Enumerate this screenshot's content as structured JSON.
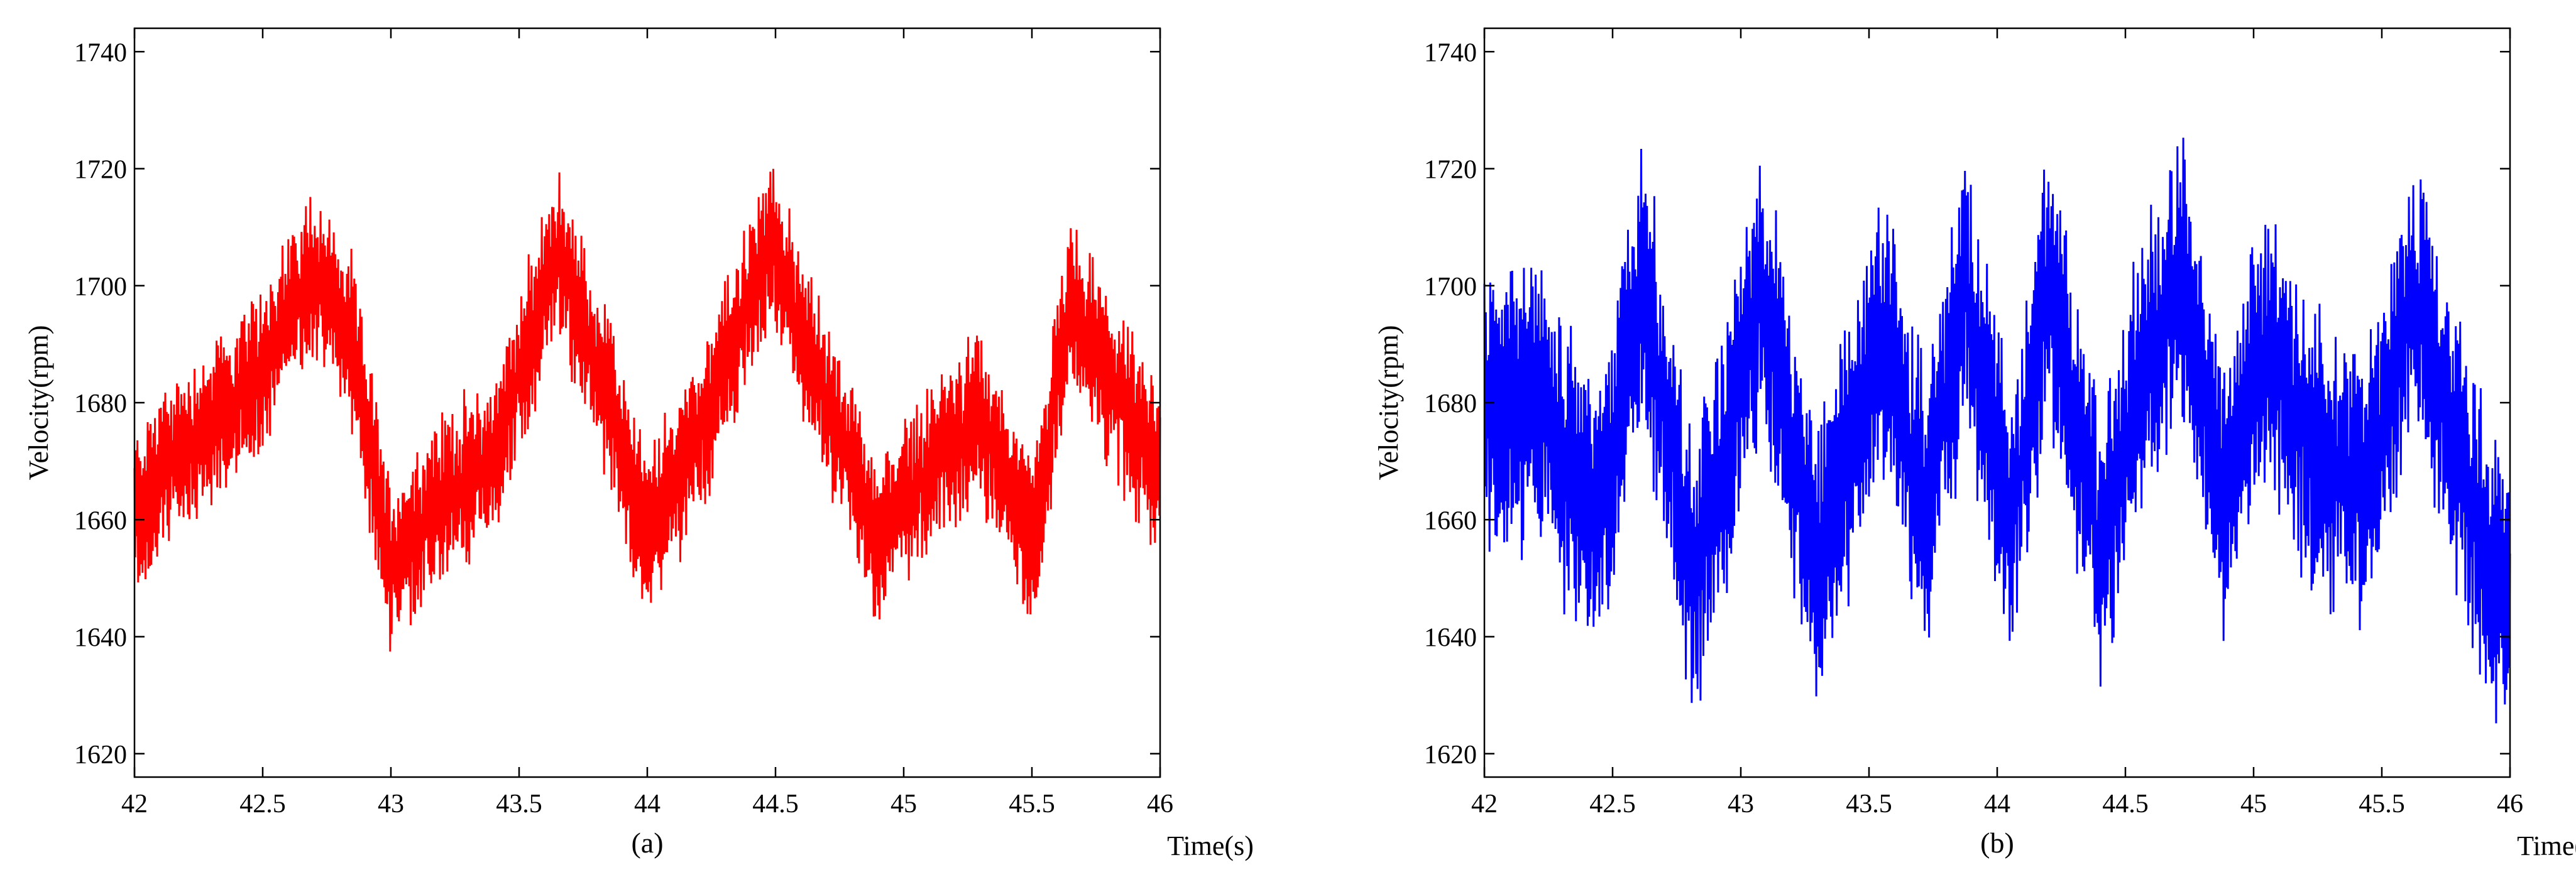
{
  "chart_data": [
    {
      "type": "line",
      "caption": "(a)",
      "xlabel": "Time(s)",
      "ylabel": "Velocity(rpm)",
      "xlim": [
        42,
        46
      ],
      "ylim": [
        1616,
        1744
      ],
      "xticks": [
        42,
        42.5,
        43,
        43.5,
        44,
        44.5,
        45,
        45.5,
        46
      ],
      "xtick_labels": [
        "42",
        "42.5",
        "43",
        "43.5",
        "44",
        "44.5",
        "45",
        "45.5",
        "46"
      ],
      "yticks": [
        1620,
        1640,
        1660,
        1680,
        1700,
        1720,
        1740
      ],
      "ytick_labels": [
        "1620",
        "1640",
        "1660",
        "1680",
        "1700",
        "1720",
        "1740"
      ],
      "grid": false,
      "series": [
        {
          "name": "Velocity",
          "color": "#ff0000",
          "oscillation_amplitude": 13,
          "envelope": {
            "x": [
              42.0,
              42.1,
              42.25,
              42.45,
              42.7,
              42.85,
              43.0,
              43.2,
              43.4,
              43.65,
              43.85,
              44.0,
              44.25,
              44.48,
              44.7,
              44.9,
              45.05,
              45.3,
              45.5,
              45.65,
              45.85,
              46.0
            ],
            "y": [
              1660,
              1668,
              1674,
              1682,
              1703,
              1690,
              1652,
              1664,
              1670,
              1706,
              1680,
              1657,
              1680,
              1707,
              1680,
              1656,
              1666,
              1678,
              1656,
              1697,
              1680,
              1668
            ]
          }
        }
      ]
    },
    {
      "type": "line",
      "caption": "(b)",
      "xlabel": "Time(s)",
      "ylabel": "Velocity(rpm)",
      "xlim": [
        42,
        46
      ],
      "ylim": [
        1616,
        1744
      ],
      "xticks": [
        42,
        42.5,
        43,
        43.5,
        44,
        44.5,
        45,
        45.5,
        46
      ],
      "xtick_labels": [
        "42",
        "42.5",
        "43",
        "43.5",
        "44",
        "44.5",
        "45",
        "45.5",
        "46"
      ],
      "yticks": [
        1620,
        1640,
        1660,
        1680,
        1700,
        1720,
        1740
      ],
      "ytick_labels": [
        "1620",
        "1640",
        "1660",
        "1680",
        "1700",
        "1720",
        "1740"
      ],
      "grid": false,
      "series": [
        {
          "name": "Velocity",
          "color": "#0000ff",
          "oscillation_amplitude": 22,
          "envelope": {
            "x": [
              42.0,
              42.2,
              42.45,
              42.62,
              42.82,
              43.08,
              43.3,
              43.55,
              43.72,
              43.88,
              44.05,
              44.2,
              44.4,
              44.55,
              44.72,
              44.88,
              45.05,
              45.25,
              45.45,
              45.62,
              45.8,
              45.98,
              46.0
            ],
            "y": [
              1678,
              1680,
              1660,
              1700,
              1650,
              1698,
              1652,
              1692,
              1660,
              1700,
              1656,
              1700,
              1655,
              1684,
              1700,
              1664,
              1690,
              1670,
              1665,
              1700,
              1670,
              1645,
              1650
            ]
          }
        }
      ]
    }
  ]
}
